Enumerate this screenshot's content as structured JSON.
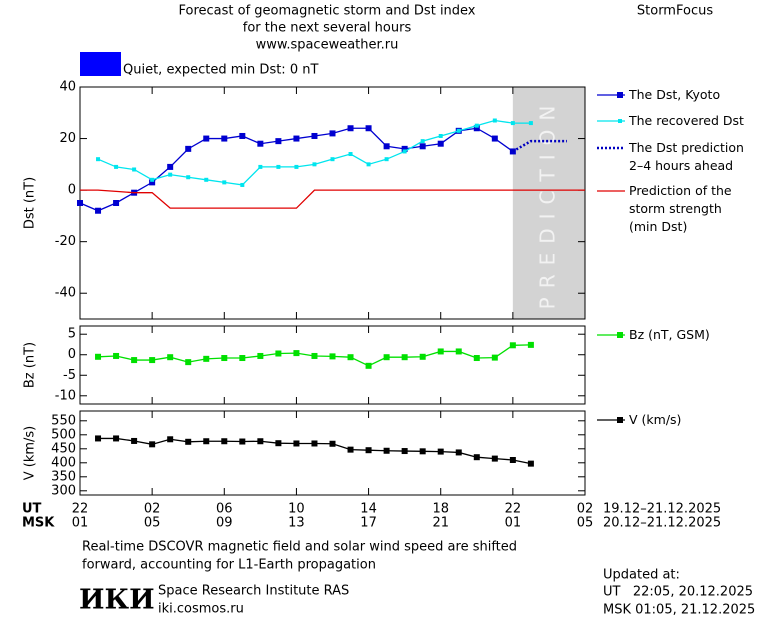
{
  "header": {
    "title_lines": [
      "Forecast of geomagnetic storm and Dst index",
      "for the next several hours",
      "www.spaceweather.ru"
    ],
    "brand": "StormFocus",
    "status": "Quiet, expected min Dst: 0 nT",
    "status_color": "#0000ff"
  },
  "chart_data": [
    {
      "type": "line",
      "ylabel": "Dst (nT)",
      "xlim": [
        0,
        28
      ],
      "xticks": [
        0,
        4,
        8,
        12,
        16,
        20,
        24,
        28
      ],
      "ylim": [
        -50,
        40
      ],
      "yticks": [
        -40,
        -20,
        0,
        20,
        40
      ],
      "shade": {
        "x": [
          24,
          28
        ],
        "color": "#d3d3d3",
        "label": "PREDICTION"
      },
      "series": [
        {
          "name": "The Dst, Kyoto",
          "color": "#0000d0",
          "marker": "square",
          "x": [
            0,
            1,
            2,
            3,
            4,
            5,
            6,
            7,
            8,
            9,
            10,
            11,
            12,
            13,
            14,
            15,
            16,
            17,
            18,
            19,
            20,
            21,
            22,
            23,
            24
          ],
          "values": [
            -5,
            -8,
            -5,
            -1,
            3,
            9,
            16,
            20,
            20,
            21,
            18,
            19,
            20,
            21,
            22,
            24,
            24,
            17,
            16,
            17,
            18,
            23,
            24,
            20,
            15
          ]
        },
        {
          "name": "The recovered Dst",
          "color": "#00e5ee",
          "marker": "small-square",
          "x": [
            1,
            2,
            3,
            4,
            5,
            6,
            7,
            8,
            9,
            10,
            11,
            12,
            13,
            14,
            15,
            16,
            17,
            18,
            19,
            20,
            21,
            22,
            23,
            24,
            25
          ],
          "values": [
            12,
            9,
            8,
            4,
            6,
            5,
            4,
            3,
            2,
            9,
            9,
            9,
            10,
            12,
            14,
            10,
            12,
            15,
            19,
            21,
            23,
            25,
            27,
            26,
            26
          ]
        },
        {
          "name": "The Dst prediction\n2–4 hours ahead",
          "color": "#0000c0",
          "dash": "dotted",
          "x": [
            24,
            25,
            26,
            27
          ],
          "values": [
            15,
            19,
            19,
            19
          ]
        },
        {
          "name": "Prediction of the\nstorm strength\n(min Dst)",
          "color": "#e00000",
          "x": [
            0,
            1,
            2,
            3,
            4,
            5,
            6,
            7,
            8,
            9,
            10,
            11,
            12,
            13,
            14,
            15,
            16,
            17,
            18,
            19,
            20,
            21,
            22,
            23,
            24,
            25,
            26,
            27,
            28
          ],
          "values": [
            0,
            0,
            -0.5,
            -1,
            -1,
            -7,
            -7,
            -7,
            -7,
            -7,
            -7,
            -7,
            -7,
            0,
            0,
            0,
            0,
            0,
            0,
            0,
            0,
            0,
            0,
            0,
            0,
            0,
            0,
            0,
            0
          ]
        }
      ]
    },
    {
      "type": "line",
      "ylabel": "Bz (nT)",
      "xlim": [
        0,
        28
      ],
      "xticks": [
        0,
        4,
        8,
        12,
        16,
        20,
        24,
        28
      ],
      "ylim": [
        -12,
        7
      ],
      "yticks": [
        -10,
        -5,
        0,
        5
      ],
      "series": [
        {
          "name": "Bz (nT, GSM)",
          "color": "#00e000",
          "marker": "square",
          "x": [
            1,
            2,
            3,
            4,
            5,
            6,
            7,
            8,
            9,
            10,
            11,
            12,
            13,
            14,
            15,
            16,
            17,
            18,
            19,
            20,
            21,
            22,
            23,
            24,
            25
          ],
          "values": [
            -0.5,
            -0.3,
            -1.3,
            -1.3,
            -0.6,
            -1.8,
            -1,
            -0.8,
            -0.8,
            -0.3,
            0.3,
            0.4,
            -0.3,
            -0.4,
            -0.6,
            -2.7,
            -0.6,
            -0.6,
            -0.5,
            0.8,
            0.8,
            -0.8,
            -0.7,
            2.3,
            2.4
          ]
        }
      ]
    },
    {
      "type": "line",
      "ylabel": "V (km/s)",
      "xlim": [
        0,
        28
      ],
      "xticks": [
        {
          "value": 0,
          "label": "22"
        },
        {
          "value": 4,
          "label": "02"
        },
        {
          "value": 8,
          "label": "06"
        },
        {
          "value": 12,
          "label": "10"
        },
        {
          "value": 16,
          "label": "14"
        },
        {
          "value": 20,
          "label": "18"
        },
        {
          "value": 24,
          "label": "22"
        },
        {
          "value": 28,
          "label": "02"
        }
      ],
      "x2ticks": [
        {
          "value": 0,
          "label": "01"
        },
        {
          "value": 4,
          "label": "05"
        },
        {
          "value": 8,
          "label": "09"
        },
        {
          "value": 12,
          "label": "13"
        },
        {
          "value": 16,
          "label": "17"
        },
        {
          "value": 20,
          "label": "21"
        },
        {
          "value": 24,
          "label": "01"
        },
        {
          "value": 28,
          "label": "05"
        }
      ],
      "xlabel": "UT",
      "x2label": "MSK",
      "xrange": "19.12–21.12.2025",
      "x2range": "20.12–21.12.2025",
      "ylim": [
        285,
        585
      ],
      "yticks": [
        300,
        350,
        400,
        450,
        500,
        550
      ],
      "series": [
        {
          "name": "V (km/s)",
          "color": "#000000",
          "marker": "square",
          "x": [
            1,
            2,
            3,
            4,
            5,
            6,
            7,
            8,
            9,
            10,
            11,
            12,
            13,
            14,
            15,
            16,
            17,
            18,
            19,
            20,
            21,
            22,
            23,
            24,
            25
          ],
          "values": [
            487,
            487,
            478,
            466,
            484,
            475,
            477,
            477,
            476,
            477,
            470,
            469,
            469,
            468,
            447,
            445,
            443,
            442,
            441,
            440,
            437,
            420,
            415,
            410,
            397
          ]
        }
      ]
    }
  ],
  "footer": {
    "note_lines": [
      "Real-time DSCOVR magnetic field and solar wind speed are shifted",
      "forward, accounting for L1-Earth propagation"
    ],
    "logo": "ИКИ",
    "institute": "Space Research Institute RAS",
    "website": "iki.cosmos.ru",
    "updated_label": "Updated at:",
    "updated_ut": "UT   22:05, 20.12.2025",
    "updated_msk": "MSK 01:05, 21.12.2025"
  }
}
